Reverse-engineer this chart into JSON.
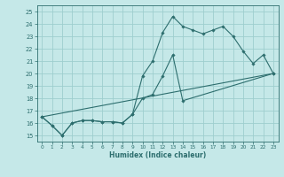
{
  "xlabel": "Humidex (Indice chaleur)",
  "xlim": [
    -0.5,
    23.5
  ],
  "ylim": [
    14.5,
    25.5
  ],
  "xticks": [
    0,
    1,
    2,
    3,
    4,
    5,
    6,
    7,
    8,
    9,
    10,
    11,
    12,
    13,
    14,
    15,
    16,
    17,
    18,
    19,
    20,
    21,
    22,
    23
  ],
  "yticks": [
    15,
    16,
    17,
    18,
    19,
    20,
    21,
    22,
    23,
    24,
    25
  ],
  "bg_color": "#c5e8e8",
  "grid_color": "#9ecece",
  "line_color": "#2d6e6e",
  "line1_x": [
    0,
    1,
    2,
    3,
    4,
    5,
    6,
    7,
    8,
    9,
    10,
    11,
    12,
    13,
    14,
    15,
    16,
    17,
    18,
    19,
    20,
    21,
    22,
    23
  ],
  "line1_y": [
    16.5,
    15.8,
    15.0,
    16.0,
    16.2,
    16.2,
    16.1,
    16.1,
    16.0,
    16.7,
    19.8,
    21.0,
    23.3,
    24.6,
    23.8,
    23.5,
    23.2,
    23.5,
    23.8,
    23.0,
    21.8,
    20.8,
    21.5,
    20.0
  ],
  "line2_x": [
    0,
    1,
    2,
    3,
    4,
    5,
    6,
    7,
    8,
    9,
    10,
    11,
    12,
    13,
    14,
    23
  ],
  "line2_y": [
    16.5,
    15.8,
    15.0,
    16.0,
    16.2,
    16.2,
    16.1,
    16.1,
    16.0,
    16.7,
    18.0,
    18.3,
    19.8,
    21.5,
    17.8,
    20.0
  ],
  "line3_x": [
    0,
    23
  ],
  "line3_y": [
    16.5,
    20.0
  ]
}
